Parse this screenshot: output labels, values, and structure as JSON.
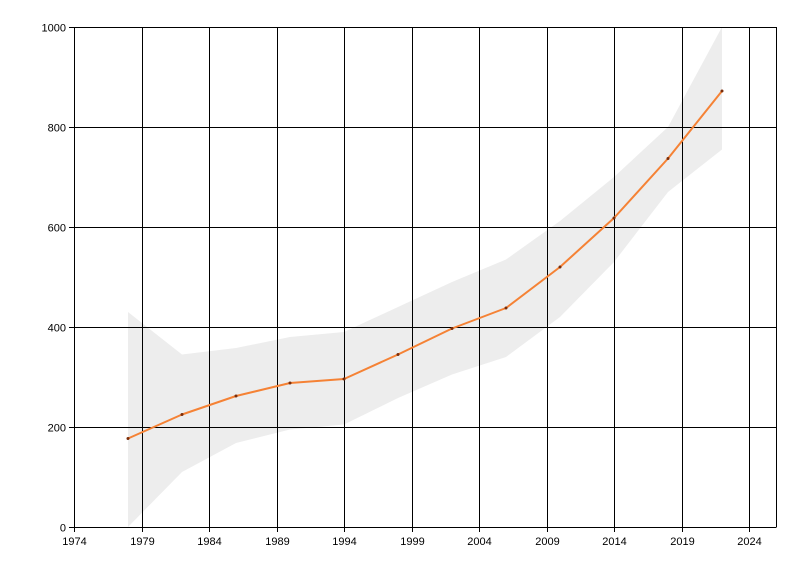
{
  "chart_data": {
    "type": "line",
    "title": "",
    "xlabel": "",
    "ylabel": "",
    "xlim": [
      1974,
      2026
    ],
    "ylim": [
      0,
      1000
    ],
    "x_ticks": [
      1974,
      1979,
      1984,
      1989,
      1994,
      1999,
      2004,
      2009,
      2014,
      2019,
      2024
    ],
    "y_ticks": [
      0,
      200,
      400,
      600,
      800,
      1000
    ],
    "x_tick_labels": [
      "1974",
      "1979",
      "1984",
      "1989",
      "1994",
      "1999",
      "2004",
      "2009",
      "2014",
      "2019",
      "2024"
    ],
    "y_tick_labels": [
      "0",
      "200",
      "400",
      "600",
      "800",
      "1000"
    ],
    "grid": true,
    "legend": "none",
    "series": [
      {
        "x": [
          1978,
          1982,
          1986,
          1990,
          1994,
          1998,
          2002,
          2006,
          2010,
          2014,
          2018,
          2022
        ],
        "values": [
          177,
          225,
          262,
          288,
          296,
          345,
          397,
          438,
          520,
          618,
          737,
          872
        ],
        "color": "#f58235"
      }
    ],
    "band": {
      "x": [
        1978,
        1982,
        1986,
        1990,
        1994,
        1998,
        2002,
        2006,
        2010,
        2014,
        2018,
        2022
      ],
      "upper": [
        430,
        345,
        358,
        380,
        390,
        440,
        490,
        535,
        612,
        700,
        800,
        1000
      ],
      "lower": [
        0,
        110,
        168,
        195,
        205,
        258,
        305,
        340,
        420,
        530,
        670,
        755
      ],
      "color": "#ededed"
    }
  }
}
